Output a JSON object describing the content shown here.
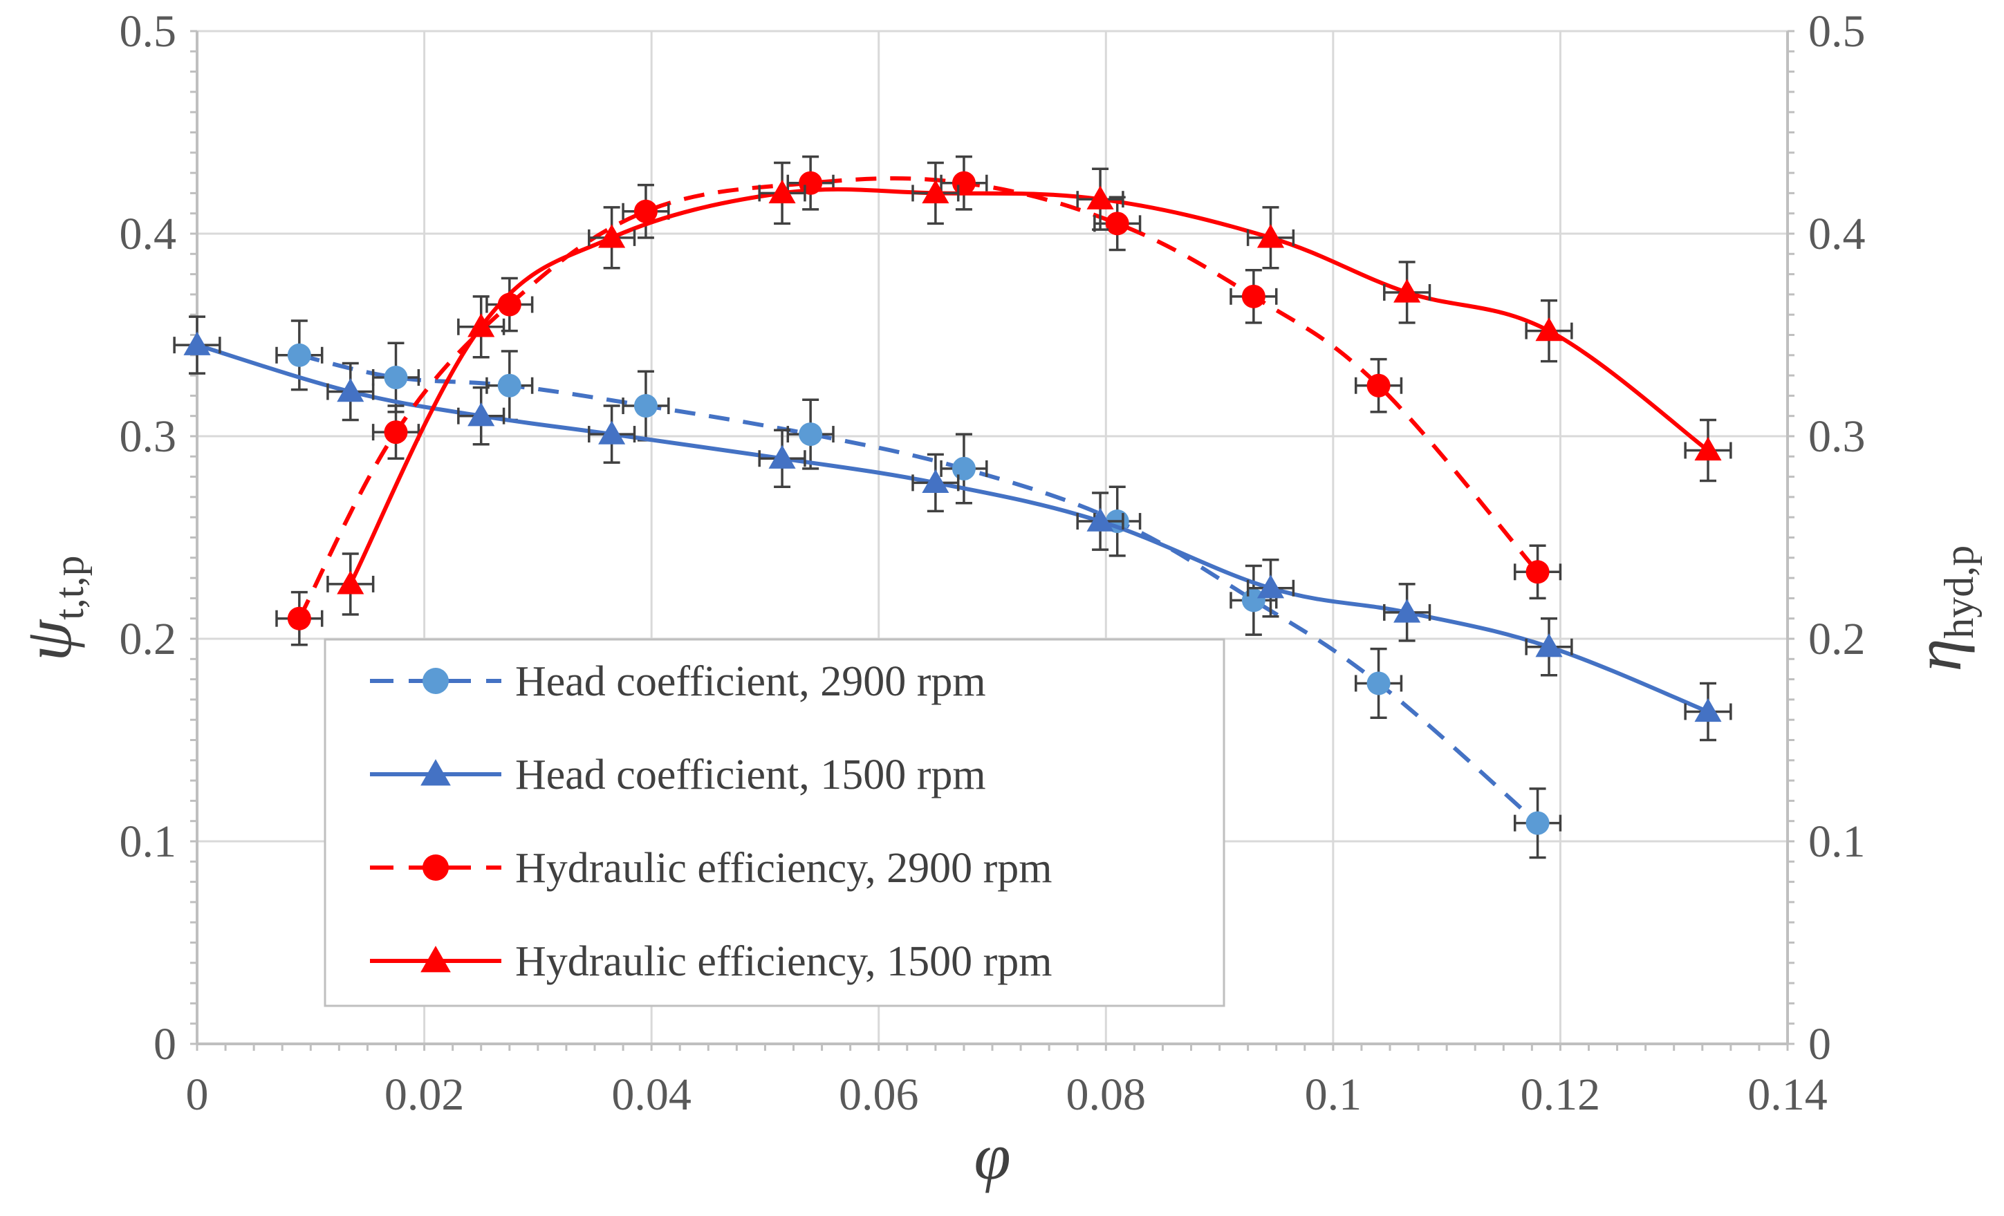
{
  "chart_data": {
    "type": "line",
    "title": "",
    "xlabel": "φ",
    "ylabel_left": "ψ",
    "ylabel_left_subscript": "t,t,p",
    "ylabel_right": "η",
    "ylabel_right_subscript": "hyd,p",
    "xlim": [
      0,
      0.14
    ],
    "ylim": [
      0,
      0.5
    ],
    "y2lim": [
      0,
      0.5
    ],
    "x_ticks": [
      "0",
      "0.02",
      "0.04",
      "0.06",
      "0.08",
      "0.1",
      "0.12",
      "0.14"
    ],
    "y_ticks": [
      "0",
      "0.1",
      "0.2",
      "0.3",
      "0.4",
      "0.5"
    ],
    "y2_ticks": [
      "0",
      "0.1",
      "0.2",
      "0.3",
      "0.4",
      "0.5"
    ],
    "grid": true,
    "legend_position": "lower-left",
    "error_bars": true,
    "series": [
      {
        "name": "Head coefficient, 2900 rpm",
        "color": "#4472C4",
        "marker_color": "#5B9BD5",
        "marker": "circle",
        "line_style": "dashed",
        "axis": "left",
        "x": [
          0.009,
          0.0175,
          0.0275,
          0.0395,
          0.054,
          0.0675,
          0.081,
          0.093,
          0.104,
          0.118
        ],
        "y": [
          0.34,
          0.329,
          0.325,
          0.315,
          0.301,
          0.284,
          0.258,
          0.219,
          0.178,
          0.109
        ],
        "y_err": 0.017,
        "x_err": 0.002
      },
      {
        "name": "Head coefficient, 1500 rpm",
        "color": "#4472C4",
        "marker_color": "#4472C4",
        "marker": "triangle",
        "line_style": "solid",
        "axis": "left",
        "x": [
          0.0,
          0.0135,
          0.025,
          0.0365,
          0.0515,
          0.065,
          0.0795,
          0.0945,
          0.1065,
          0.119,
          0.133
        ],
        "y": [
          0.345,
          0.322,
          0.31,
          0.301,
          0.289,
          0.277,
          0.258,
          0.225,
          0.213,
          0.196,
          0.164
        ],
        "y_err": 0.014,
        "x_err": 0.002
      },
      {
        "name": "Hydraulic efficiency, 2900 rpm",
        "color": "#FF0000",
        "marker_color": "#FF0000",
        "marker": "circle",
        "line_style": "dashed",
        "axis": "right",
        "x": [
          0.009,
          0.0175,
          0.0275,
          0.0395,
          0.054,
          0.0675,
          0.081,
          0.093,
          0.104,
          0.118
        ],
        "y": [
          0.21,
          0.302,
          0.365,
          0.411,
          0.425,
          0.425,
          0.405,
          0.369,
          0.325,
          0.233
        ],
        "y_err": 0.013,
        "x_err": 0.002
      },
      {
        "name": "Hydraulic efficiency, 1500 rpm",
        "color": "#FF0000",
        "marker_color": "#FF0000",
        "marker": "triangle",
        "line_style": "solid",
        "axis": "right",
        "x": [
          0.0135,
          0.025,
          0.0365,
          0.0515,
          0.065,
          0.0795,
          0.0945,
          0.1065,
          0.119,
          0.133
        ],
        "y": [
          0.227,
          0.354,
          0.398,
          0.42,
          0.42,
          0.417,
          0.398,
          0.371,
          0.352,
          0.293
        ],
        "y_err": 0.015,
        "x_err": 0.002
      }
    ]
  }
}
